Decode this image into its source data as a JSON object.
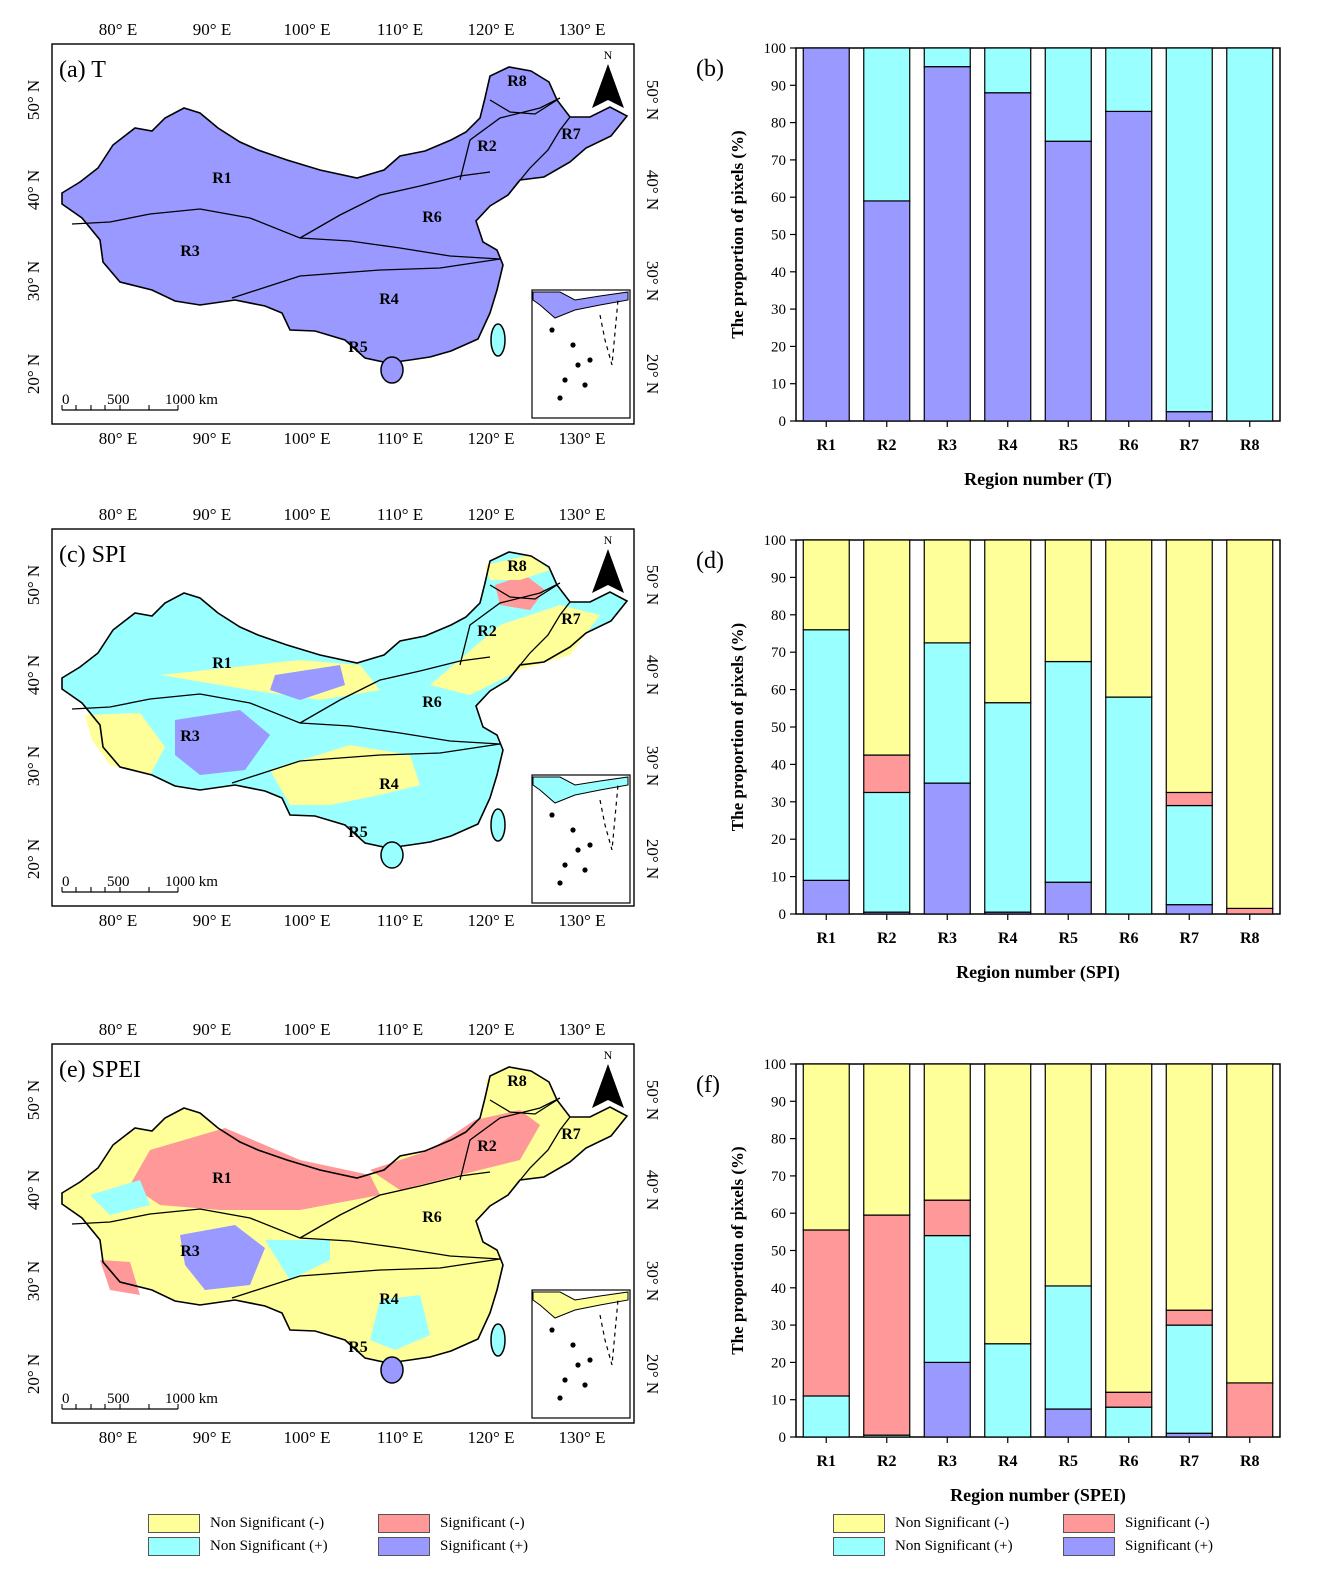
{
  "colors": {
    "nonsig_neg": "#ffff99",
    "sig_neg": "#ff9999",
    "nonsig_pos": "#99ffff",
    "sig_pos": "#9999ff",
    "line": "#000000"
  },
  "legend": {
    "nonsig_neg": "Non Significant (-)",
    "sig_neg": "Significant (-)",
    "nonsig_pos": "Non Significant (+)",
    "sig_pos": "Significant (+)"
  },
  "map_common": {
    "lon_labels": [
      "80° E",
      "90° E",
      "100° E",
      "110° E",
      "120° E",
      "130° E"
    ],
    "lat_labels": [
      "50° N",
      "40° N",
      "30° N",
      "20° N"
    ],
    "north": "N",
    "scale_labels": [
      "0",
      "500",
      "1000 km"
    ],
    "region_labels": [
      "R1",
      "R2",
      "R3",
      "R4",
      "R5",
      "R6",
      "R7",
      "R8"
    ]
  },
  "maps": [
    {
      "title": "(a) T",
      "base": "sig_pos"
    },
    {
      "title": "(c) SPI",
      "base": "nonsig_pos"
    },
    {
      "title": "(e) SPEI",
      "base": "nonsig_neg"
    }
  ],
  "chart_data": [
    {
      "type": "bar",
      "stacked": true,
      "panel": "(b)",
      "categories": [
        "R1",
        "R2",
        "R3",
        "R4",
        "R5",
        "R6",
        "R7",
        "R8"
      ],
      "xlabel": "Region number  (T)",
      "ylabel": "The proportion of pixels (%)",
      "ylim": [
        0,
        100
      ],
      "yticks": [
        0,
        10,
        20,
        30,
        40,
        50,
        60,
        70,
        80,
        90,
        100
      ],
      "series": [
        {
          "name": "Significant (+)",
          "color_key": "sig_pos",
          "values": [
            100,
            59,
            95,
            88,
            75,
            83,
            2.5,
            0
          ]
        },
        {
          "name": "Non Significant (+)",
          "color_key": "nonsig_pos",
          "values": [
            0,
            41,
            5,
            12,
            25,
            17,
            97.5,
            100
          ]
        },
        {
          "name": "Significant (-)",
          "color_key": "sig_neg",
          "values": [
            0,
            0,
            0,
            0,
            0,
            0,
            0,
            0
          ]
        },
        {
          "name": "Non Significant (-)",
          "color_key": "nonsig_neg",
          "values": [
            0,
            0,
            0,
            0,
            0,
            0,
            0,
            0
          ]
        }
      ]
    },
    {
      "type": "bar",
      "stacked": true,
      "panel": "(d)",
      "categories": [
        "R1",
        "R2",
        "R3",
        "R4",
        "R5",
        "R6",
        "R7",
        "R8"
      ],
      "xlabel": "Region number  (SPI)",
      "ylabel": "The proportion of pixels (%)",
      "ylim": [
        0,
        100
      ],
      "yticks": [
        0,
        10,
        20,
        30,
        40,
        50,
        60,
        70,
        80,
        90,
        100
      ],
      "series": [
        {
          "name": "Significant (+)",
          "color_key": "sig_pos",
          "values": [
            9,
            0.5,
            35,
            0.5,
            8.5,
            0,
            2.5,
            0
          ]
        },
        {
          "name": "Non Significant (+)",
          "color_key": "nonsig_pos",
          "values": [
            67,
            32,
            37.5,
            56,
            59,
            58,
            26.5,
            0
          ]
        },
        {
          "name": "Significant (-)",
          "color_key": "sig_neg",
          "values": [
            0,
            10,
            0,
            0,
            0,
            0,
            3.5,
            1.5
          ]
        },
        {
          "name": "Non Significant (-)",
          "color_key": "nonsig_neg",
          "values": [
            24,
            57.5,
            27.5,
            43.5,
            32.5,
            42,
            67.5,
            98.5
          ]
        }
      ]
    },
    {
      "type": "bar",
      "stacked": true,
      "panel": "(f)",
      "categories": [
        "R1",
        "R2",
        "R3",
        "R4",
        "R5",
        "R6",
        "R7",
        "R8"
      ],
      "xlabel": "Region number  (SPEI)",
      "ylabel": "The proportion of pixels (%)",
      "ylim": [
        0,
        100
      ],
      "yticks": [
        0,
        10,
        20,
        30,
        40,
        50,
        60,
        70,
        80,
        90,
        100
      ],
      "series": [
        {
          "name": "Significant (+)",
          "color_key": "sig_pos",
          "values": [
            0,
            0,
            20,
            0,
            7.5,
            0,
            1,
            0
          ]
        },
        {
          "name": "Non Significant (+)",
          "color_key": "nonsig_pos",
          "values": [
            11,
            0.5,
            34,
            25,
            33,
            8,
            29,
            0
          ]
        },
        {
          "name": "Significant (-)",
          "color_key": "sig_neg",
          "values": [
            44.5,
            59,
            9.5,
            0,
            0,
            4,
            4,
            14.5
          ]
        },
        {
          "name": "Non Significant (-)",
          "color_key": "nonsig_neg",
          "values": [
            44.5,
            40.5,
            36.5,
            75,
            59.5,
            88,
            66,
            85.5
          ]
        }
      ]
    }
  ]
}
